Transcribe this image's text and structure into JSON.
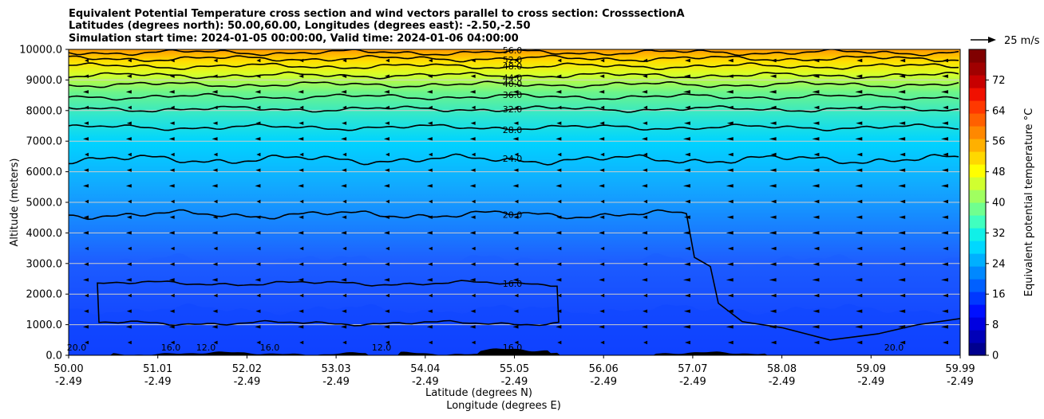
{
  "chart_data": {
    "type": "heatmap",
    "title_lines": [
      "Equivalent Potential Temperature cross section and wind vectors parallel to cross section: CrosssectionA",
      "Latitudes (degrees north): 50.00,60.00, Longitudes (degrees east): -2.50,-2.50",
      "Simulation start time: 2024-01-05 00:00:00, Valid time: 2024-01-06 04:00:00"
    ],
    "ylabel": "Altitude (meters)",
    "xlabel_lines": [
      "Latitude (degrees N)",
      "Longitude (degrees E)"
    ],
    "ylim": [
      0,
      10000
    ],
    "yticks": [
      "0.0",
      "1000.0",
      "2000.0",
      "3000.0",
      "4000.0",
      "5000.0",
      "6000.0",
      "7000.0",
      "8000.0",
      "9000.0",
      "10000.0"
    ],
    "xticks": [
      {
        "lat": "50.00",
        "lon": "-2.49"
      },
      {
        "lat": "51.01",
        "lon": "-2.49"
      },
      {
        "lat": "52.02",
        "lon": "-2.49"
      },
      {
        "lat": "53.03",
        "lon": "-2.49"
      },
      {
        "lat": "54.04",
        "lon": "-2.49"
      },
      {
        "lat": "55.05",
        "lon": "-2.49"
      },
      {
        "lat": "56.06",
        "lon": "-2.49"
      },
      {
        "lat": "57.07",
        "lon": "-2.49"
      },
      {
        "lat": "58.08",
        "lon": "-2.49"
      },
      {
        "lat": "59.09",
        "lon": "-2.49"
      },
      {
        "lat": "59.99",
        "lon": "-2.49"
      }
    ],
    "grid": "horizontal",
    "colorbar": {
      "label": "Equivalent potential temperature $^\\circ$C",
      "label_display": "Equivalent potential temperature °C",
      "min": 0,
      "max": 80,
      "ticks": [
        "0",
        "8",
        "16",
        "24",
        "32",
        "40",
        "48",
        "56",
        "64",
        "72"
      ]
    },
    "quiver_key": {
      "label": "25 m/s"
    },
    "contours": [
      {
        "level": 16,
        "label": "16.0",
        "base_alt": 2350
      },
      {
        "level": 20,
        "label": "20.0",
        "base_alt": 4600
      },
      {
        "level": 24,
        "label": "24.0",
        "base_alt": 6400
      },
      {
        "level": 28,
        "label": "28.0",
        "base_alt": 7450
      },
      {
        "level": 32,
        "label": "32.0",
        "base_alt": 8050
      },
      {
        "level": 36,
        "label": "36.0",
        "base_alt": 8450
      },
      {
        "level": 40,
        "label": "40.0",
        "base_alt": 8850
      },
      {
        "level": 44,
        "label": "44.0",
        "base_alt": 9150
      },
      {
        "level": 48,
        "label": "48.0",
        "base_alt": 9450
      },
      {
        "level": 52,
        "label": "52.0",
        "base_alt": 9700
      },
      {
        "level": 56,
        "label": "56.0",
        "base_alt": 9900
      }
    ],
    "surface_labels": [
      "20.0",
      "16.0",
      "12.0",
      "16.0",
      "12.0",
      "16.0",
      "20.0"
    ],
    "colors": {
      "terrain": "#000000",
      "contour_line": "#000000",
      "grid": "#cccccc"
    }
  }
}
